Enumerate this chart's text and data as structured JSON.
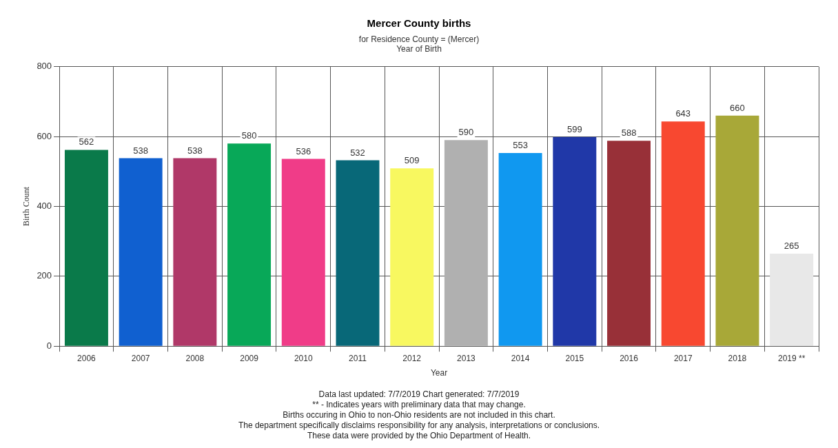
{
  "chart_data": {
    "type": "bar",
    "title": "Mercer County births",
    "subtitle": "for Residence County = (Mercer)\nYear of Birth",
    "xlabel": "Year",
    "ylabel": "Birth Count",
    "categories": [
      "2006",
      "2007",
      "2008",
      "2009",
      "2010",
      "2011",
      "2012",
      "2013",
      "2014",
      "2015",
      "2016",
      "2017",
      "2018",
      "2019 **"
    ],
    "values": [
      562,
      538,
      538,
      580,
      536,
      532,
      509,
      590,
      553,
      599,
      588,
      643,
      660,
      265
    ],
    "colors": [
      "#0a7a4a",
      "#1060d0",
      "#b03868",
      "#08a858",
      "#f03c88",
      "#086878",
      "#f8f860",
      "#b0b0b0",
      "#1098f0",
      "#2038a8",
      "#983038",
      "#f84830",
      "#a8a838",
      "#e8e8e8"
    ],
    "ylim": [
      0,
      800
    ],
    "yticks": [
      0,
      200,
      400,
      600,
      800
    ],
    "grid": true,
    "legend": false,
    "data_labels": true,
    "annotations": [
      "Data last updated: 7/7/2019  Chart generated: 7/7/2019",
      "** - Indicates years with preliminary data that may change.",
      "Births occuring in Ohio to non-Ohio residents are not included in this chart.",
      "The department specifically disclaims responsibility for any analysis, interpretations or conclusions.",
      "These data were provided by the Ohio Department of Health."
    ]
  }
}
